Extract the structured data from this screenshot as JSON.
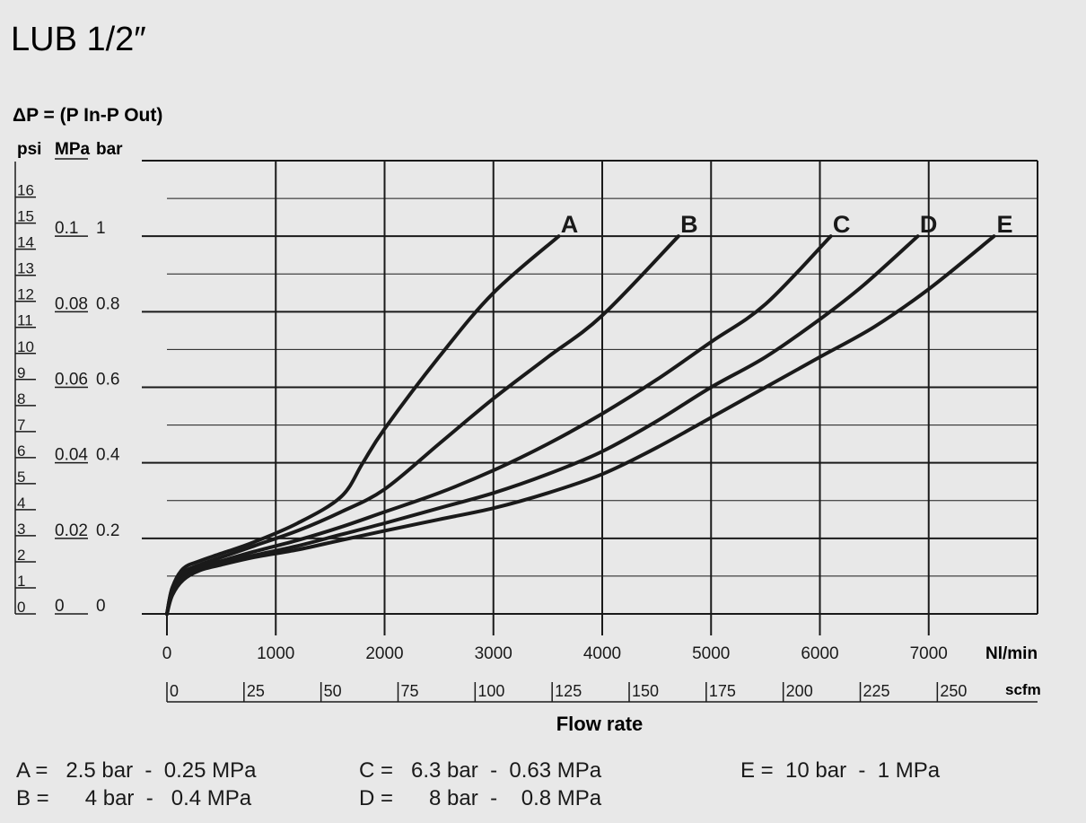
{
  "chart_data": {
    "type": "line",
    "title": "LUB 1/2″",
    "ylabel": "ΔP = (P In-P Out)",
    "xlabel": "Flow rate",
    "y_units": [
      "psi",
      "MPa",
      "bar"
    ],
    "x_units": [
      "Nl/min",
      "scfm"
    ],
    "xlim": [
      0,
      8000
    ],
    "ylim": [
      0,
      1.2
    ],
    "grid": true,
    "x_ticks_nlmin": [
      "0",
      "1000",
      "2000",
      "3000",
      "4000",
      "5000",
      "6000",
      "7000"
    ],
    "x_ticks_scfm": [
      "0",
      "25",
      "50",
      "75",
      "100",
      "125",
      "150",
      "175",
      "200",
      "225",
      "250"
    ],
    "y_ticks_bar": [
      "0",
      "0.2",
      "0.4",
      "0.6",
      "0.8",
      "1"
    ],
    "y_ticks_mpa": [
      "0",
      "0.02",
      "0.04",
      "0.06",
      "0.08",
      "0.1"
    ],
    "y_ticks_psi": [
      "0",
      "1",
      "2",
      "3",
      "4",
      "5",
      "6",
      "7",
      "8",
      "9",
      "10",
      "11",
      "12",
      "13",
      "14",
      "15",
      "16"
    ],
    "series": [
      {
        "name": "A",
        "x": [
          0,
          50,
          150,
          300,
          500,
          800,
          1200,
          1600,
          1800,
          2000,
          2500,
          3000,
          3600
        ],
        "y": [
          0,
          0.07,
          0.12,
          0.14,
          0.16,
          0.19,
          0.24,
          0.31,
          0.4,
          0.49,
          0.68,
          0.85,
          1.0
        ]
      },
      {
        "name": "B",
        "x": [
          0,
          50,
          150,
          300,
          500,
          800,
          1200,
          1600,
          2000,
          2500,
          3000,
          3500,
          4000,
          4700
        ],
        "y": [
          0,
          0.07,
          0.11,
          0.13,
          0.15,
          0.18,
          0.22,
          0.27,
          0.33,
          0.45,
          0.57,
          0.68,
          0.79,
          1.0
        ]
      },
      {
        "name": "C",
        "x": [
          0,
          50,
          150,
          300,
          500,
          800,
          1200,
          1600,
          2000,
          2500,
          3000,
          3500,
          4000,
          4500,
          5000,
          5500,
          6100
        ],
        "y": [
          0,
          0.06,
          0.1,
          0.125,
          0.14,
          0.165,
          0.195,
          0.23,
          0.27,
          0.32,
          0.38,
          0.45,
          0.53,
          0.62,
          0.72,
          0.82,
          1.0
        ]
      },
      {
        "name": "D",
        "x": [
          0,
          50,
          150,
          300,
          500,
          800,
          1200,
          1600,
          2000,
          2500,
          3000,
          3500,
          4000,
          4500,
          5000,
          5500,
          6000,
          6400,
          6900
        ],
        "y": [
          0,
          0.055,
          0.095,
          0.12,
          0.135,
          0.155,
          0.18,
          0.21,
          0.24,
          0.28,
          0.32,
          0.37,
          0.43,
          0.51,
          0.6,
          0.68,
          0.78,
          0.87,
          1.0
        ]
      },
      {
        "name": "E",
        "x": [
          0,
          50,
          150,
          300,
          500,
          800,
          1200,
          1600,
          2000,
          2500,
          3000,
          3500,
          4000,
          4500,
          5000,
          5500,
          6000,
          6500,
          7000,
          7600
        ],
        "y": [
          0,
          0.05,
          0.09,
          0.115,
          0.13,
          0.15,
          0.17,
          0.195,
          0.22,
          0.25,
          0.28,
          0.32,
          0.37,
          0.44,
          0.52,
          0.6,
          0.68,
          0.76,
          0.86,
          1.0
        ]
      }
    ],
    "legend_notes": [
      "A =   2.5 bar  -  0.25 MPa",
      "B =      4 bar  -   0.4 MPa",
      "C =   6.3 bar  -  0.63 MPa",
      "D =      8 bar  -    0.8 MPa",
      "E =  10 bar  -  1 MPa"
    ],
    "line_color": "#1a1a1a",
    "background_color": "#e8e8e8"
  }
}
